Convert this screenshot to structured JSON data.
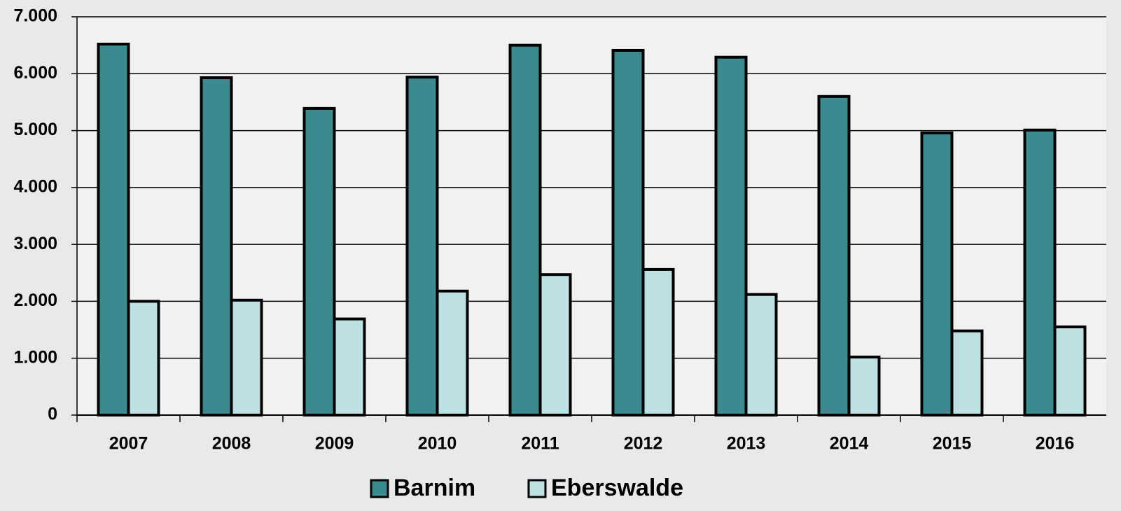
{
  "chart_data": {
    "type": "bar",
    "categories": [
      "2007",
      "2008",
      "2009",
      "2010",
      "2011",
      "2012",
      "2013",
      "2014",
      "2015",
      "2016"
    ],
    "series": [
      {
        "name": "Barnim",
        "color": "#3b8a8f",
        "values": [
          6520,
          5930,
          5390,
          5940,
          6500,
          6410,
          6290,
          5600,
          4960,
          5010
        ]
      },
      {
        "name": "Eberswalde",
        "color": "#bde0e3",
        "values": [
          2000,
          2020,
          1690,
          2180,
          2470,
          2560,
          2120,
          1020,
          1480,
          1550
        ]
      }
    ],
    "ylim": [
      0,
      7000
    ],
    "yticks": [
      0,
      {
        "value": 1000,
        "label": "1.000"
      },
      {
        "value": 2000,
        "label": "2.000"
      },
      {
        "value": 3000,
        "label": "3.000"
      },
      {
        "value": 4000,
        "label": "4.000"
      },
      {
        "value": 5000,
        "label": "5.000"
      },
      {
        "value": 6000,
        "label": "6.000"
      },
      {
        "value": 7000,
        "label": "7.000"
      }
    ],
    "grid": true,
    "legend": "bottom"
  }
}
